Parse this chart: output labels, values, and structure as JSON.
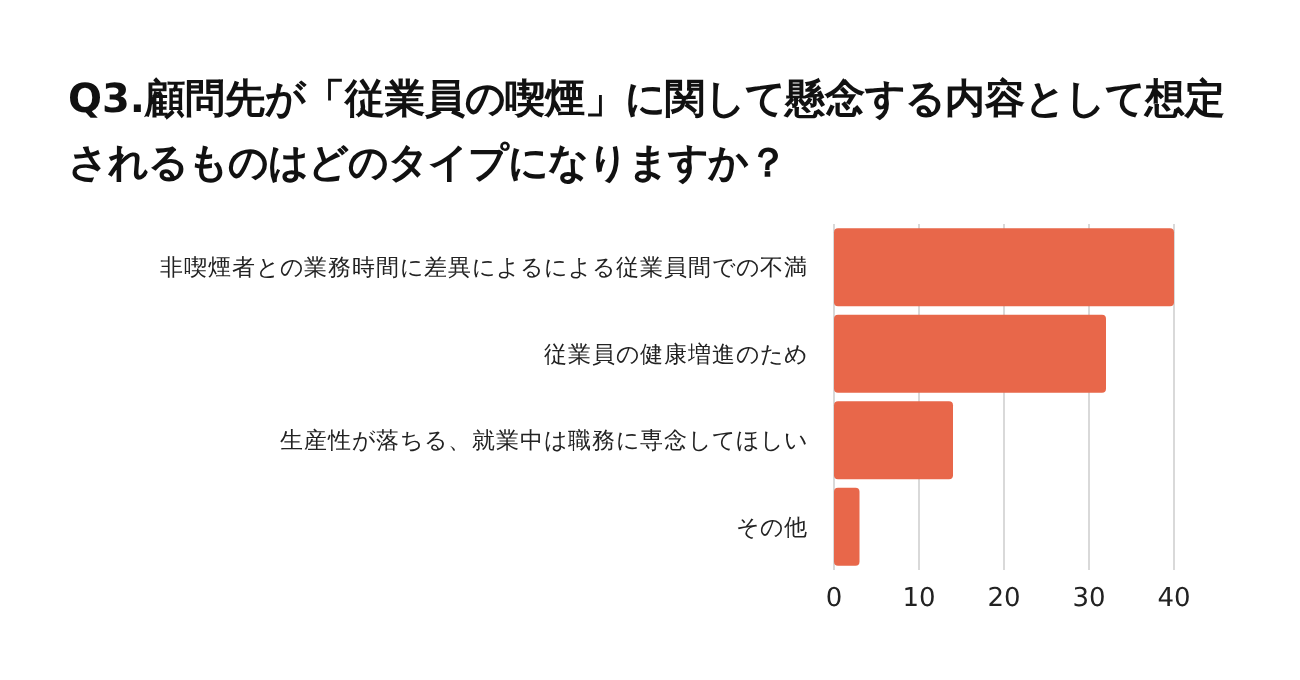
{
  "chart_data": {
    "type": "bar",
    "orientation": "horizontal",
    "title": "Q3.顧問先が「従業員の喫煙」に関して懸念する内容として想定されるものはどのタイプになりますか？",
    "categories": [
      "非喫煙者との業務時間に差異によるによる従業員間での不満",
      "従業員の健康増進のため",
      "生産性が落ちる、就業中は職務に専念してほしい",
      "その他"
    ],
    "values": [
      40,
      32,
      14,
      3
    ],
    "color": "#e8674a",
    "xlim": [
      0,
      40
    ],
    "xticks": [
      0,
      10,
      20,
      30,
      40
    ],
    "grid": "x"
  }
}
